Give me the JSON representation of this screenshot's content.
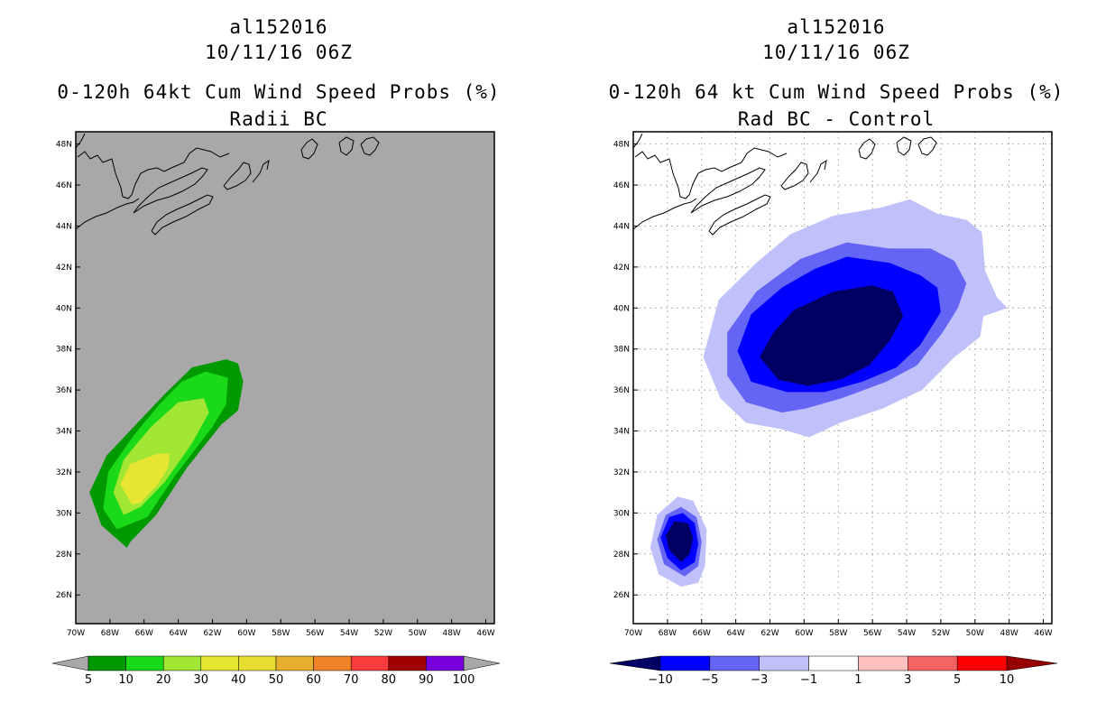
{
  "chart_data": [
    {
      "type": "heatmap",
      "storm_id": "al152016",
      "datetime": "10/11/16 06Z",
      "title": "0-120h 64kt Cum Wind Speed Probs (%)",
      "subtitle": "Radii BC",
      "lat_ticks": [
        "48N",
        "46N",
        "44N",
        "42N",
        "40N",
        "38N",
        "36N",
        "34N",
        "32N",
        "30N",
        "28N",
        "26N"
      ],
      "lon_ticks": [
        "70W",
        "68W",
        "66W",
        "64W",
        "62W",
        "60W",
        "58W",
        "56W",
        "54W",
        "52W",
        "50W",
        "48W",
        "46W"
      ],
      "xlim": [
        -70,
        -45.5
      ],
      "ylim": [
        24.6,
        48.6
      ],
      "grid": false,
      "background_color": "#a8a8a8",
      "colorbar": {
        "labels": [
          "5",
          "10",
          "20",
          "30",
          "40",
          "50",
          "60",
          "70",
          "80",
          "90",
          "100"
        ],
        "colors": [
          "#009a00",
          "#19d919",
          "#a0e632",
          "#e6e632",
          "#e6dc32",
          "#e6af2d",
          "#f08228",
          "#fa3c3c",
          "#a00000",
          "#7800dc"
        ]
      },
      "contours": [
        {
          "level": "5",
          "color": "#009a00",
          "points": [
            [
              -67,
              28.3
            ],
            [
              -68.5,
              29.4
            ],
            [
              -69.2,
              31
            ],
            [
              -68.2,
              32.8
            ],
            [
              -66.5,
              34.3
            ],
            [
              -64.8,
              35.8
            ],
            [
              -63.2,
              37.1
            ],
            [
              -61.2,
              37.5
            ],
            [
              -60.5,
              37.3
            ],
            [
              -60.2,
              36.4
            ],
            [
              -60.5,
              35
            ],
            [
              -61.5,
              34.3
            ],
            [
              -63.5,
              32.2
            ],
            [
              -65.3,
              29.9
            ],
            [
              -66.8,
              28.6
            ]
          ]
        },
        {
          "level": "10",
          "color": "#19d919",
          "points": [
            [
              -67.6,
              29.2
            ],
            [
              -68.4,
              30.2
            ],
            [
              -68.1,
              32
            ],
            [
              -66.6,
              33.8
            ],
            [
              -65.1,
              35.3
            ],
            [
              -63.8,
              36.4
            ],
            [
              -62.4,
              36.9
            ],
            [
              -61.1,
              36.6
            ],
            [
              -61.2,
              35.3
            ],
            [
              -62,
              34.2
            ],
            [
              -64.2,
              31.8
            ],
            [
              -65.8,
              29.8
            ]
          ]
        },
        {
          "level": "20",
          "color": "#a0e632",
          "points": [
            [
              -67.2,
              29.9
            ],
            [
              -67.8,
              31
            ],
            [
              -67.2,
              32.6
            ],
            [
              -65.6,
              34.2
            ],
            [
              -64,
              35.4
            ],
            [
              -62.5,
              35.6
            ],
            [
              -62.2,
              34.9
            ],
            [
              -63.2,
              33.4
            ],
            [
              -64.8,
              31.5
            ],
            [
              -66.2,
              30.3
            ]
          ]
        },
        {
          "level": "30",
          "color": "#e6e632",
          "points": [
            [
              -66.7,
              30.4
            ],
            [
              -67.4,
              31.4
            ],
            [
              -66.8,
              32.4
            ],
            [
              -65.2,
              32.9
            ],
            [
              -64.5,
              32.9
            ],
            [
              -64.6,
              32.2
            ],
            [
              -65.2,
              31.4
            ],
            [
              -66.2,
              30.5
            ]
          ]
        }
      ]
    },
    {
      "type": "heatmap",
      "storm_id": "al152016",
      "datetime": "10/11/16 06Z",
      "title": "0-120h 64 kt Cum Wind Speed Probs (%)",
      "subtitle": "Rad BC - Control",
      "lat_ticks": [
        "48N",
        "46N",
        "44N",
        "42N",
        "40N",
        "38N",
        "36N",
        "34N",
        "32N",
        "30N",
        "28N",
        "26N"
      ],
      "lon_ticks": [
        "70W",
        "68W",
        "66W",
        "64W",
        "62W",
        "60W",
        "58W",
        "56W",
        "54W",
        "52W",
        "50W",
        "48W",
        "46W"
      ],
      "xlim": [
        -70,
        -45.5
      ],
      "ylim": [
        24.6,
        48.6
      ],
      "grid": true,
      "background_color": "#ffffff",
      "colorbar": {
        "labels": [
          "-10",
          "-5",
          "-3",
          "-1",
          "1",
          "3",
          "5",
          "10"
        ],
        "colors": [
          "#000064",
          "#0000ff",
          "#6464f5",
          "#c0c0fa",
          "#ffffff",
          "#ffc0c0",
          "#f56464",
          "#ff0000",
          "#960000"
        ]
      },
      "contours": [
        {
          "level": "-1",
          "color": "#c0c0fa",
          "points": [
            [
              -59.7,
              33.7
            ],
            [
              -61.4,
              34.1
            ],
            [
              -63.4,
              34.4
            ],
            [
              -64.9,
              35.6
            ],
            [
              -65.9,
              37.6
            ],
            [
              -65,
              40.4
            ],
            [
              -62.8,
              42.2
            ],
            [
              -60.8,
              43.6
            ],
            [
              -58.3,
              44.5
            ],
            [
              -55.5,
              44.9
            ],
            [
              -53.8,
              45.3
            ],
            [
              -52.2,
              44.6
            ],
            [
              -50.5,
              44.3
            ],
            [
              -49.6,
              43.7
            ],
            [
              -49.4,
              41.8
            ],
            [
              -48.7,
              40.5
            ],
            [
              -48.1,
              40
            ],
            [
              -49.5,
              39.6
            ],
            [
              -49.7,
              38.6
            ],
            [
              -51.2,
              37.6
            ],
            [
              -53.1,
              36
            ],
            [
              -55.4,
              35.1
            ],
            [
              -57.9,
              34.4
            ]
          ]
        },
        {
          "level": "-3",
          "color": "#6464f5",
          "points": [
            [
              -61.3,
              34.9
            ],
            [
              -63.4,
              35.4
            ],
            [
              -64.5,
              36.7
            ],
            [
              -64.5,
              38.8
            ],
            [
              -62.8,
              40.8
            ],
            [
              -60.2,
              42.4
            ],
            [
              -57.5,
              43.2
            ],
            [
              -55,
              42.9
            ],
            [
              -52.6,
              42.9
            ],
            [
              -51.2,
              42.3
            ],
            [
              -50.5,
              41.2
            ],
            [
              -51,
              40
            ],
            [
              -51.9,
              38.8
            ],
            [
              -53.4,
              37.2
            ],
            [
              -55.2,
              36.4
            ],
            [
              -57.8,
              35.6
            ],
            [
              -59.9,
              35.1
            ]
          ]
        },
        {
          "level": "-5",
          "color": "#0000ff",
          "points": [
            [
              -61,
              35.9
            ],
            [
              -63.1,
              36.4
            ],
            [
              -63.9,
              37.9
            ],
            [
              -63.1,
              39.7
            ],
            [
              -61.3,
              41
            ],
            [
              -59.4,
              41.9
            ],
            [
              -57.5,
              42.5
            ],
            [
              -55,
              42.2
            ],
            [
              -53.2,
              41.6
            ],
            [
              -52.2,
              41
            ],
            [
              -52,
              39.8
            ],
            [
              -53.2,
              38.2
            ],
            [
              -54.6,
              37.1
            ],
            [
              -56.6,
              36.4
            ],
            [
              -58.8,
              35.9
            ]
          ]
        },
        {
          "level": "-10",
          "color": "#000064",
          "points": [
            [
              -59.8,
              36.2
            ],
            [
              -61.5,
              36.5
            ],
            [
              -62.6,
              37.6
            ],
            [
              -61.8,
              38.8
            ],
            [
              -60.6,
              39.9
            ],
            [
              -58.3,
              40.8
            ],
            [
              -56,
              41.1
            ],
            [
              -54.8,
              40.8
            ],
            [
              -54.2,
              39.6
            ],
            [
              -55,
              38.4
            ],
            [
              -56.2,
              37.2
            ],
            [
              -57.9,
              36.5
            ]
          ]
        },
        {
          "level": "-1",
          "color": "#c0c0fa",
          "points": [
            [
              -67.2,
              26.4
            ],
            [
              -68.5,
              27
            ],
            [
              -69,
              28.3
            ],
            [
              -68.6,
              29.9
            ],
            [
              -67.4,
              30.8
            ],
            [
              -66.5,
              30.6
            ],
            [
              -65.7,
              29.2
            ],
            [
              -65.8,
              27.4
            ],
            [
              -66.2,
              26.6
            ]
          ]
        },
        {
          "level": "-3",
          "color": "#6464f5",
          "points": [
            [
              -67,
              26.9
            ],
            [
              -68.2,
              27.5
            ],
            [
              -68.6,
              28.7
            ],
            [
              -68.1,
              29.9
            ],
            [
              -67.2,
              30.3
            ],
            [
              -66.3,
              29.8
            ],
            [
              -66,
              28.6
            ],
            [
              -66.2,
              27.4
            ]
          ]
        },
        {
          "level": "-5",
          "color": "#0000ff",
          "points": [
            [
              -67.2,
              27.2
            ],
            [
              -68,
              27.8
            ],
            [
              -68.4,
              28.8
            ],
            [
              -67.9,
              29.8
            ],
            [
              -67.1,
              30
            ],
            [
              -66.4,
              29.5
            ],
            [
              -66.2,
              28.5
            ],
            [
              -66.4,
              27.6
            ]
          ]
        },
        {
          "level": "-10",
          "color": "#000064",
          "points": [
            [
              -67.2,
              27.6
            ],
            [
              -67.9,
              28.2
            ],
            [
              -68.1,
              28.9
            ],
            [
              -67.6,
              29.6
            ],
            [
              -66.8,
              29.5
            ],
            [
              -66.5,
              28.8
            ],
            [
              -66.7,
              28
            ]
          ]
        }
      ]
    }
  ]
}
